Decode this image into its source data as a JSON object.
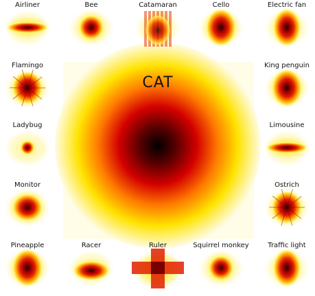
{
  "title": "CAT",
  "tiles": [
    {
      "label": "Airliner",
      "shape": "wide-ellipse"
    },
    {
      "label": "Bee",
      "shape": "blob"
    },
    {
      "label": "Catamaran",
      "shape": "vertical-streaks"
    },
    {
      "label": "Cello",
      "shape": "tall-blob"
    },
    {
      "label": "Electric fan",
      "shape": "tall-rect"
    },
    {
      "label": "Flamingo",
      "shape": "scribble"
    },
    {
      "label": "King penguin",
      "shape": "tall-blob"
    },
    {
      "label": "Ladybug",
      "shape": "small-spot"
    },
    {
      "label": "Limousine",
      "shape": "wide-ellipse"
    },
    {
      "label": "Monitor",
      "shape": "square"
    },
    {
      "label": "Ostrich",
      "shape": "scribble"
    },
    {
      "label": "Pineapple",
      "shape": "tall-blob"
    },
    {
      "label": "Racer",
      "shape": "half-ellipse"
    },
    {
      "label": "Ruler",
      "shape": "cross"
    },
    {
      "label": "Squirrel monkey",
      "shape": "blob"
    },
    {
      "label": "Traffic light",
      "shape": "tall-rect"
    }
  ],
  "colors": {
    "dark": "#1a0000",
    "red": "#d40000",
    "orange": "#ff8c00",
    "yellow": "#ffff66",
    "bg": "#ffffff"
  }
}
